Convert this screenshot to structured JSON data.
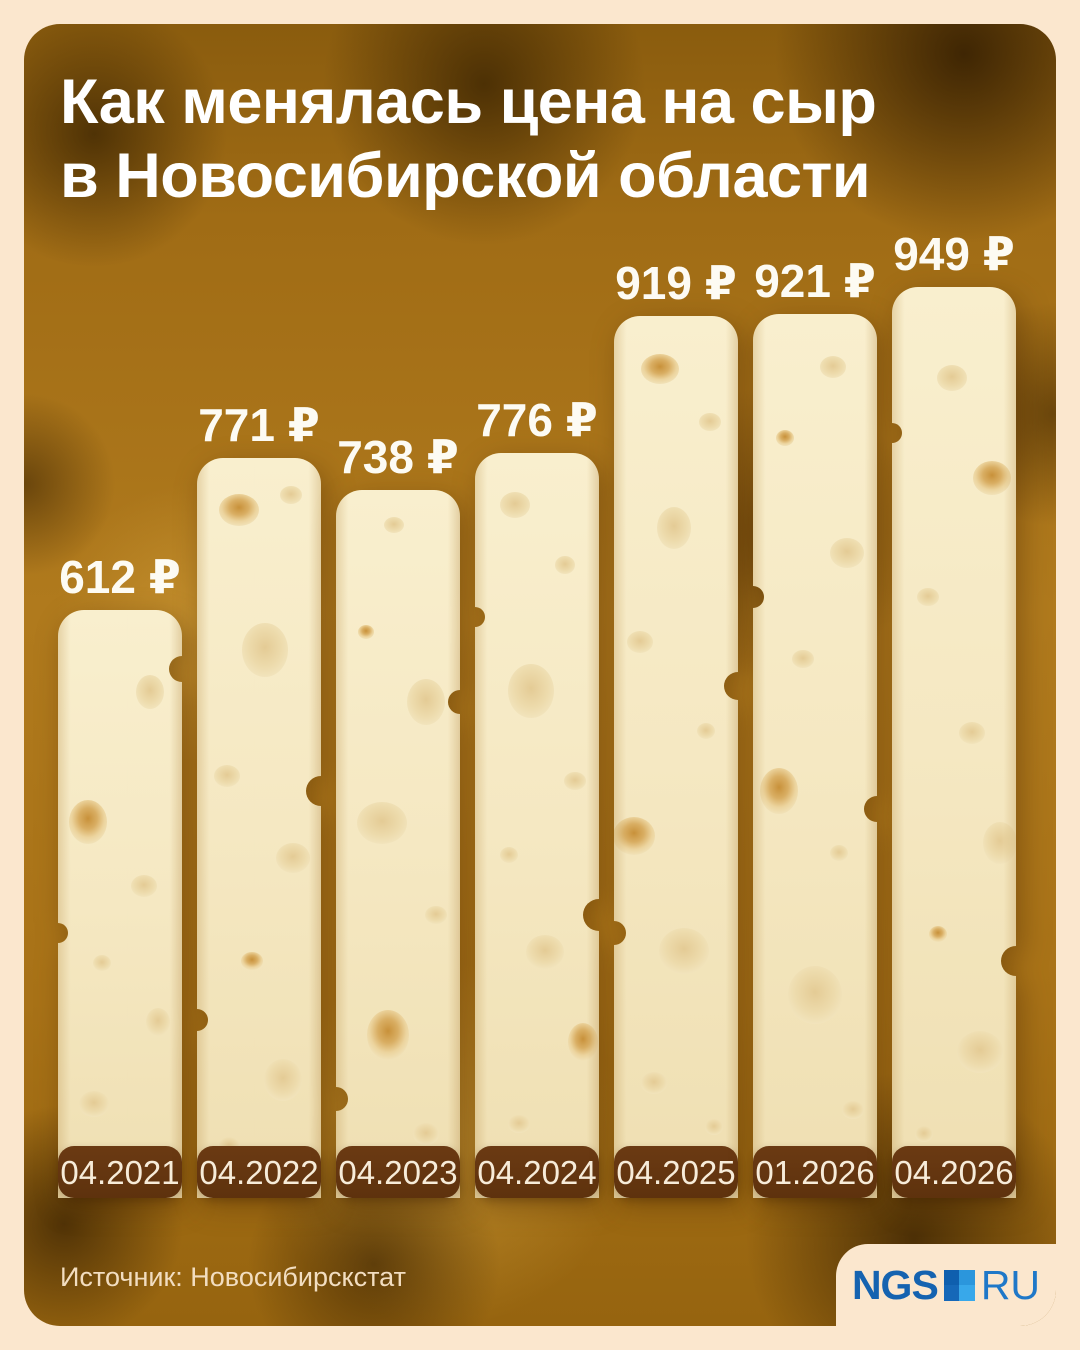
{
  "title": {
    "line1": "Как менялась цена на сыр",
    "line2": "в Новосибирской области"
  },
  "chart_data": {
    "type": "bar",
    "title": "Как менялась цена на сыр в Новосибирской области",
    "categories": [
      "04.2021",
      "04.2022",
      "04.2023",
      "04.2024",
      "04.2025",
      "01.2026",
      "04.2026"
    ],
    "values": [
      612,
      771,
      738,
      776,
      919,
      921,
      949
    ],
    "unit": "₽",
    "value_labels": [
      "612 ₽",
      "771 ₽",
      "738 ₽",
      "776 ₽",
      "919 ₽",
      "921 ₽",
      "949 ₽"
    ],
    "xlabel": "",
    "ylabel": "",
    "legend": "none",
    "grid": false,
    "bar_style": "cheese-slice"
  },
  "footer": {
    "source": "Источник: Новосибирскстат",
    "logo": {
      "ngs": "NGS",
      "ru": "RU"
    }
  },
  "colors": {
    "frame": "#fbe7ce",
    "background_amber": "#a9721a",
    "title_text": "#ffffff",
    "price_text": "#fdfbf3",
    "pill_bg": "#63350f",
    "pill_text": "#f7ecd9",
    "cheese_base": "#f5e8c2",
    "logo_dark_blue": "#1563b0",
    "logo_light_blue": "#2b96dc"
  }
}
